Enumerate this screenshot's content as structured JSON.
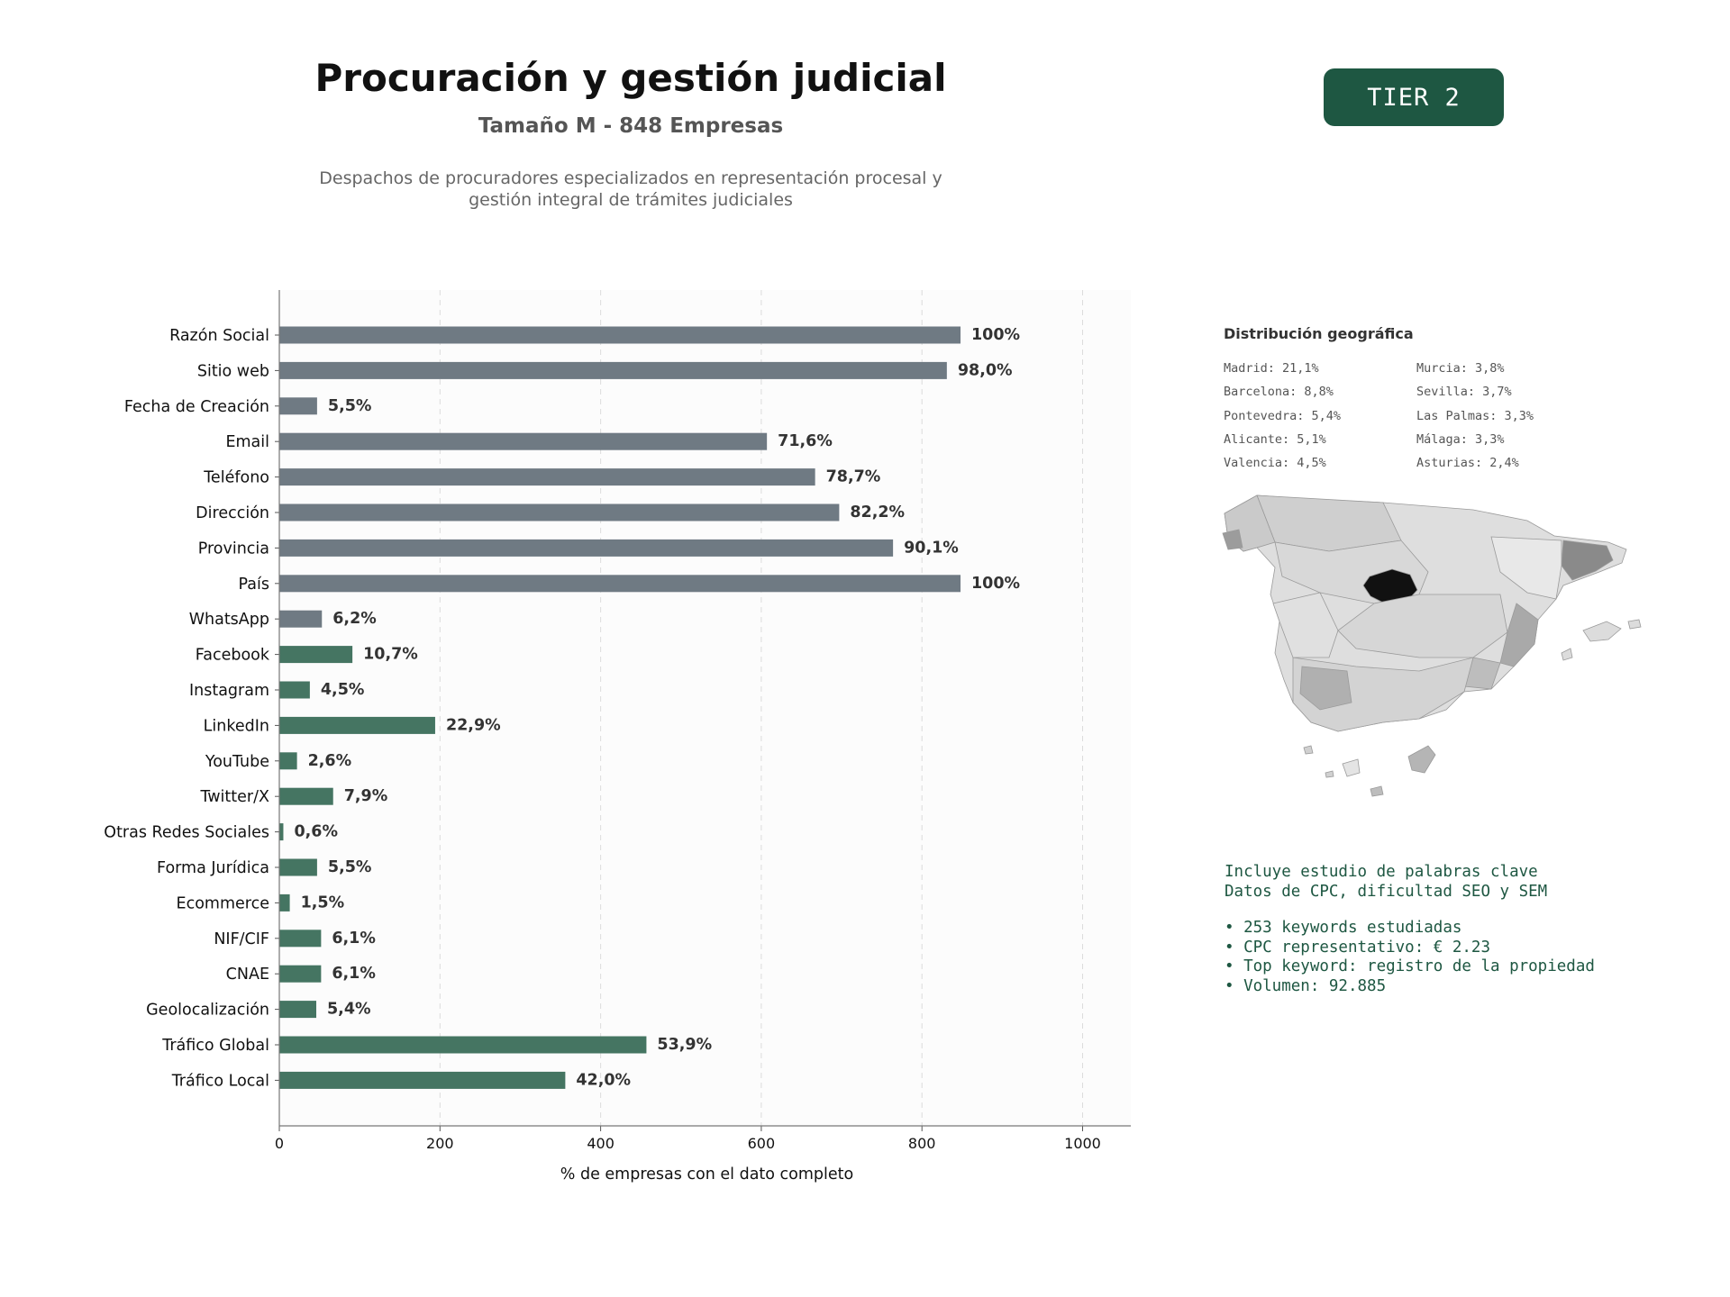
{
  "header": {
    "title": "Procuración y gestión judicial",
    "subtitle": "Tamaño M - 848 Empresas",
    "description_line1": "Despachos de procuradores especializados en representación procesal y",
    "description_line2": "gestión integral de trámites judiciales",
    "badge": "TIER 2"
  },
  "colors": {
    "bar_gray": "#6f7a83",
    "bar_green": "#457562",
    "badge_bg": "#1e5742",
    "keyword_text": "#1e5742"
  },
  "chart_data": {
    "type": "bar",
    "orientation": "horizontal",
    "xlabel": "% de empresas con el dato completo",
    "xlim": [
      0,
      1060
    ],
    "xticks": [
      0,
      200,
      400,
      600,
      800,
      1000
    ],
    "grid": "vertical dashed",
    "categories": [
      "Razón Social",
      "Sitio web",
      "Fecha de Creación",
      "Email",
      "Teléfono",
      "Dirección",
      "Provincia",
      "País",
      "WhatsApp",
      "Facebook",
      "Instagram",
      "LinkedIn",
      "YouTube",
      "Twitter/X",
      "Otras Redes Sociales",
      "Forma Jurídica",
      "Ecommerce",
      "NIF/CIF",
      "CNAE",
      "Geolocalización",
      "Tráfico Global",
      "Tráfico Local"
    ],
    "values": [
      848,
      831,
      47,
      607,
      667,
      697,
      764,
      848,
      53,
      91,
      38,
      194,
      22,
      67,
      5,
      47,
      13,
      52,
      52,
      46,
      457,
      356
    ],
    "labels": [
      "100%",
      "98,0%",
      "5,5%",
      "71,6%",
      "78,7%",
      "82,2%",
      "90,1%",
      "100%",
      "6,2%",
      "10,7%",
      "4,5%",
      "22,9%",
      "2,6%",
      "7,9%",
      "0,6%",
      "5,5%",
      "1,5%",
      "6,1%",
      "6,1%",
      "5,4%",
      "53,9%",
      "42,0%"
    ],
    "bar_color": [
      "gray",
      "gray",
      "gray",
      "gray",
      "gray",
      "gray",
      "gray",
      "gray",
      "gray",
      "green",
      "green",
      "green",
      "green",
      "green",
      "green",
      "green",
      "green",
      "green",
      "green",
      "green",
      "green",
      "green"
    ]
  },
  "geo": {
    "title": "Distribución geográfica",
    "items": [
      {
        "text": "Madrid: 21,1%"
      },
      {
        "text": "Barcelona: 8,8%"
      },
      {
        "text": "Pontevedra: 5,4%"
      },
      {
        "text": "Alicante: 5,1%"
      },
      {
        "text": "Valencia: 4,5%"
      },
      {
        "text": "Murcia: 3,8%"
      },
      {
        "text": "Sevilla: 3,7%"
      },
      {
        "text": "Las Palmas: 3,3%"
      },
      {
        "text": "Málaga: 3,3%"
      },
      {
        "text": "Asturias: 2,4%"
      }
    ]
  },
  "keywords": {
    "line1": "Incluye estudio de palabras clave",
    "line2": "Datos de CPC, dificultad SEO y SEM",
    "bullet1": "• 253 keywords estudiadas",
    "bullet2": "• CPC representativo: € 2.23",
    "bullet3": "• Top keyword: registro de la propiedad",
    "bullet4": "• Volumen: 92.885"
  }
}
